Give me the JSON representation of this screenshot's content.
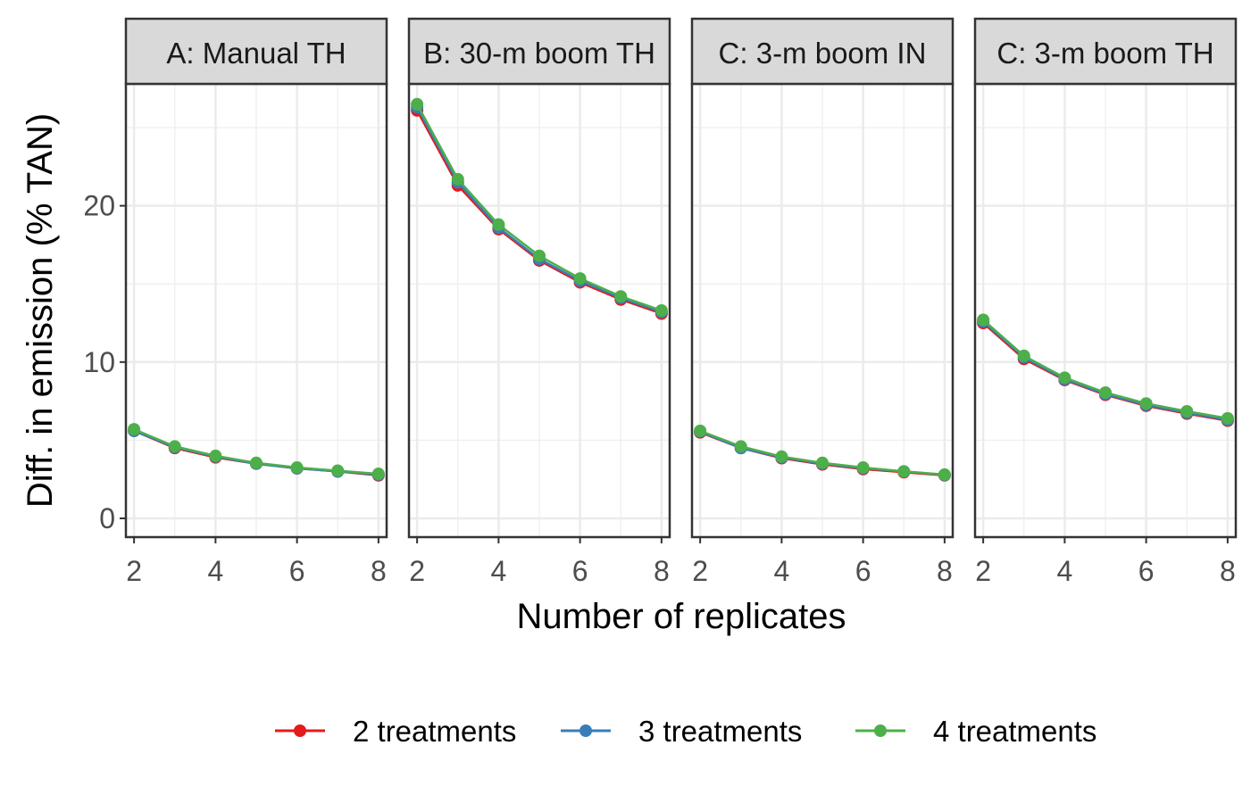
{
  "chart_data": {
    "type": "line",
    "xlabel": "Number of replicates",
    "ylabel": "Diff. in emission (% TAN)",
    "x": [
      2,
      3,
      4,
      5,
      6,
      7,
      8
    ],
    "xticks": [
      2,
      4,
      6,
      8
    ],
    "xlim": [
      1.8,
      8.2
    ],
    "yticks": [
      0,
      10,
      20
    ],
    "ylim": [
      -1.2,
      27.8
    ],
    "grid": true,
    "legend_position": "bottom",
    "colors": {
      "2 treatments": "#E41A1C",
      "3 treatments": "#377EB8",
      "4 treatments": "#4DAF4A"
    },
    "panels": [
      {
        "title": "A: Manual TH",
        "series": [
          {
            "name": "2 treatments",
            "values": [
              5.6,
              4.5,
              3.9,
              3.5,
              3.2,
              3.0,
              2.75
            ]
          },
          {
            "name": "3 treatments",
            "values": [
              5.6,
              4.55,
              3.95,
              3.5,
              3.2,
              3.0,
              2.8
            ]
          },
          {
            "name": "4 treatments",
            "values": [
              5.7,
              4.6,
              4.0,
              3.55,
              3.25,
              3.05,
              2.85
            ]
          }
        ]
      },
      {
        "title": "B: 30-m boom TH",
        "series": [
          {
            "name": "2 treatments",
            "values": [
              26.1,
              21.3,
              18.5,
              16.5,
              15.1,
              14.0,
              13.1
            ]
          },
          {
            "name": "3 treatments",
            "values": [
              26.3,
              21.5,
              18.6,
              16.6,
              15.2,
              14.1,
              13.2
            ]
          },
          {
            "name": "4 treatments",
            "values": [
              26.5,
              21.7,
              18.8,
              16.8,
              15.35,
              14.2,
              13.3
            ]
          }
        ]
      },
      {
        "title": "C: 3-m boom IN",
        "series": [
          {
            "name": "2 treatments",
            "values": [
              5.5,
              4.5,
              3.85,
              3.45,
              3.15,
              2.95,
              2.75
            ]
          },
          {
            "name": "3 treatments",
            "values": [
              5.55,
              4.5,
              3.9,
              3.5,
              3.2,
              3.0,
              2.78
            ]
          },
          {
            "name": "4 treatments",
            "values": [
              5.6,
              4.6,
              3.95,
              3.55,
              3.25,
              3.0,
              2.8
            ]
          }
        ]
      },
      {
        "title": "C: 3-m boom TH",
        "series": [
          {
            "name": "2 treatments",
            "values": [
              12.5,
              10.2,
              8.85,
              7.9,
              7.2,
              6.7,
              6.25
            ]
          },
          {
            "name": "3 treatments",
            "values": [
              12.6,
              10.3,
              8.9,
              7.95,
              7.25,
              6.75,
              6.3
            ]
          },
          {
            "name": "4 treatments",
            "values": [
              12.7,
              10.4,
              9.0,
              8.05,
              7.35,
              6.85,
              6.4
            ]
          }
        ]
      }
    ]
  }
}
